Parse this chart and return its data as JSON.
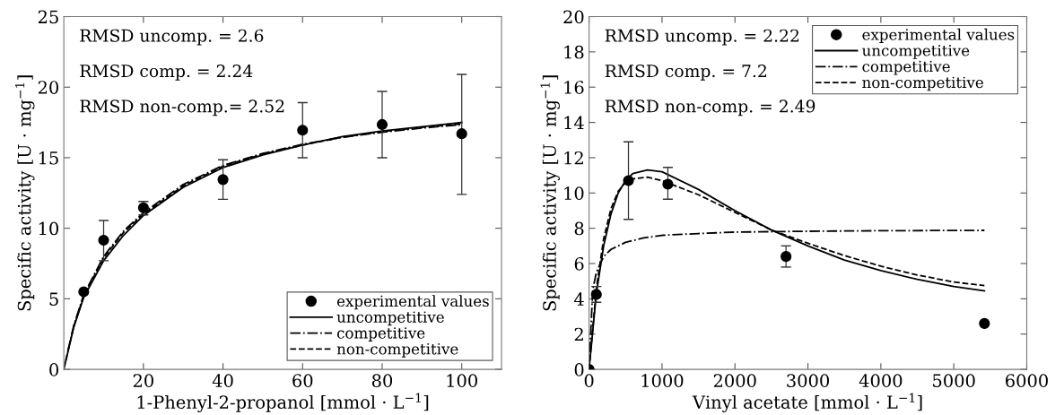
{
  "chart_data": [
    {
      "type": "line",
      "xlabel": "1-Phenyl-2-propanol [mmol · L$^{−1}$]",
      "ylabel": "Specific activity [U · mg$^{−1}$]",
      "xlim": [
        0,
        110
      ],
      "xticks": [
        20,
        40,
        60,
        80,
        100
      ],
      "ylim": [
        0,
        25
      ],
      "yticks": [
        0,
        5,
        10,
        15,
        20,
        25
      ],
      "grid": false,
      "legend": "bottom right",
      "annotations": [
        "RMSD uncomp. = 2.6",
        "RMSD comp. = 2.24",
        "RMSD non-comp.= 2.52"
      ],
      "series": [
        {
          "name": "experimental values",
          "type": "scatter",
          "marker": "circle",
          "color": "#000000",
          "x": [
            5,
            10,
            20,
            40,
            60,
            80,
            100
          ],
          "values": [
            5.5,
            9.15,
            11.45,
            13.45,
            16.95,
            17.35,
            16.7
          ],
          "errors": [
            null,
            [
              7.7,
              10.55
            ],
            [
              10.95,
              11.9
            ],
            [
              12.05,
              14.85
            ],
            [
              15.0,
              18.9
            ],
            [
              15.0,
              19.7
            ],
            [
              12.4,
              20.9
            ]
          ]
        },
        {
          "name": "uncompetitive",
          "type": "line",
          "line_style": "solid",
          "color": "#000000",
          "x": [
            0,
            2.5,
            5,
            10,
            15,
            20,
            30,
            40,
            50,
            60,
            70,
            80,
            90,
            100
          ],
          "values": [
            0,
            3.0,
            5.1,
            7.7,
            9.5,
            10.9,
            12.9,
            14.3,
            15.2,
            15.9,
            16.5,
            16.9,
            17.2,
            17.5
          ]
        },
        {
          "name": "competitive",
          "type": "line",
          "line_style": "dashdot",
          "color": "#000000",
          "x": [
            1,
            2.5,
            5,
            10,
            15,
            20,
            30,
            40,
            50,
            60,
            70,
            80,
            90,
            100
          ],
          "values": [
            1.3,
            3.1,
            5.3,
            8.0,
            9.8,
            11.1,
            13.1,
            14.45,
            15.3,
            15.95,
            16.45,
            16.8,
            17.1,
            17.35
          ]
        },
        {
          "name": "non-competitive",
          "type": "line",
          "line_style": "dashed",
          "color": "#000000",
          "x": [
            0.5,
            2.5,
            5,
            10,
            15,
            20,
            30,
            40,
            50,
            60,
            70,
            80,
            90,
            100
          ],
          "values": [
            0.65,
            3.05,
            5.2,
            7.9,
            9.7,
            11.0,
            13.0,
            14.4,
            15.25,
            15.9,
            16.45,
            16.85,
            17.15,
            17.4
          ]
        }
      ]
    },
    {
      "type": "line",
      "xlabel": "Vinyl acetate [mmol · L$^{−1}$]",
      "ylabel": "Specific activity [U · mg$^{−1}$]",
      "xlim": [
        0,
        6000
      ],
      "xticks": [
        0,
        1000,
        2000,
        3000,
        4000,
        5000,
        6000
      ],
      "ylim": [
        0,
        20
      ],
      "yticks": [
        0,
        2,
        4,
        6,
        8,
        10,
        12,
        14,
        16,
        18,
        20
      ],
      "grid": false,
      "legend": "top right",
      "annotations": [
        "RMSD uncomp. = 2.22",
        "RMSD comp. = 7.2",
        "RMSD non-comp. = 2.49"
      ],
      "series": [
        {
          "name": "experimental values",
          "type": "scatter",
          "marker": "circle",
          "color": "#000000",
          "x": [
            0,
            100,
            540,
            1080,
            2700,
            5420
          ],
          "values": [
            0,
            4.25,
            10.7,
            10.5,
            6.4,
            2.6
          ],
          "errors": [
            null,
            [
              3.8,
              4.7
            ],
            [
              8.5,
              12.9
            ],
            [
              9.65,
              11.45
            ],
            [
              5.8,
              7.0
            ],
            null
          ]
        },
        {
          "name": "uncompetitive",
          "type": "line",
          "line_style": "solid",
          "color": "#000000",
          "x": [
            0,
            100,
            200,
            300,
            400,
            500,
            600,
            800,
            1000,
            1500,
            2000,
            2500,
            3000,
            3500,
            4000,
            4500,
            5000,
            5420
          ],
          "values": [
            0,
            4.3,
            7.0,
            8.8,
            10.0,
            10.7,
            11.1,
            11.3,
            11.2,
            10.2,
            9.0,
            7.9,
            7.0,
            6.2,
            5.6,
            5.1,
            4.7,
            4.45
          ]
        },
        {
          "name": "competitive",
          "type": "line",
          "line_style": "dashdot",
          "color": "#000000",
          "x": [
            0,
            50,
            100,
            200,
            300,
            500,
            750,
            1000,
            1500,
            2000,
            3000,
            4000,
            5420
          ],
          "values": [
            0,
            4.5,
            5.5,
            6.4,
            6.8,
            7.2,
            7.45,
            7.6,
            7.7,
            7.78,
            7.83,
            7.86,
            7.88
          ]
        },
        {
          "name": "non-competitive",
          "type": "line",
          "line_style": "dashed",
          "color": "#000000",
          "x": [
            0,
            100,
            200,
            300,
            400,
            500,
            600,
            800,
            1000,
            1500,
            2000,
            2500,
            3000,
            3500,
            4000,
            4500,
            5000,
            5420
          ],
          "values": [
            0,
            4.6,
            7.4,
            9.1,
            10.1,
            10.6,
            10.8,
            10.9,
            10.7,
            9.9,
            8.9,
            7.9,
            7.15,
            6.45,
            5.85,
            5.35,
            4.95,
            4.75
          ]
        }
      ]
    }
  ]
}
